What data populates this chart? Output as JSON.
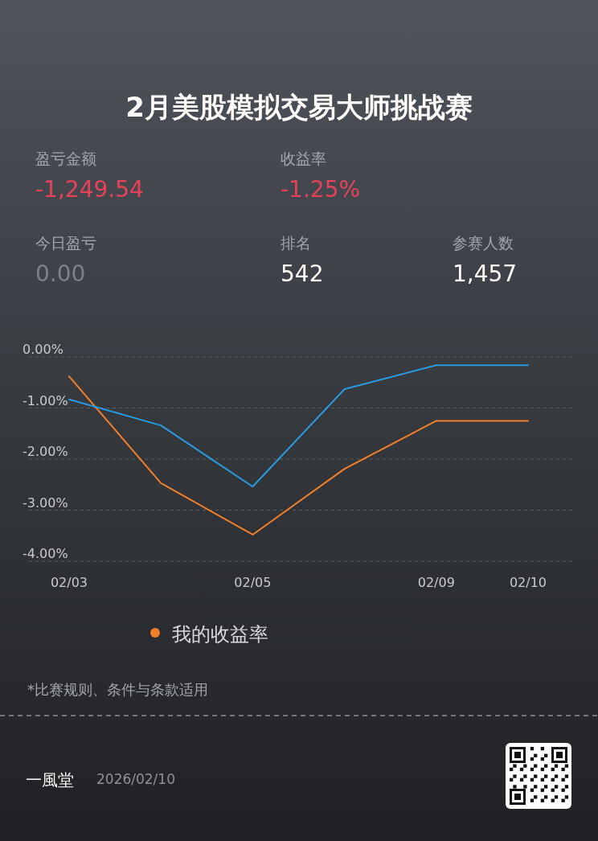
{
  "chart_data": {
    "type": "line",
    "title": "2月美股模拟交易大师挑战赛",
    "categories": [
      "02/03",
      null,
      "02/05",
      null,
      "02/09",
      "02/10"
    ],
    "series": [
      {
        "name": "我的收益率",
        "color": "#f0802a",
        "values": [
          -0.38,
          -2.47,
          -3.48,
          -2.19,
          -1.25,
          -1.25
        ]
      },
      {
        "color": "#2a9be0",
        "values": [
          -0.83,
          -1.34,
          -2.54,
          -0.63,
          -0.16,
          -0.16
        ]
      }
    ],
    "ylim": [
      -4,
      0
    ],
    "yticks": [
      {
        "value": 0,
        "label": "0.00%"
      },
      {
        "value": -1,
        "label": "-1.00%"
      },
      {
        "value": -2,
        "label": "-2.00%"
      },
      {
        "value": -3,
        "label": "-3.00%"
      },
      {
        "value": -4,
        "label": "-4.00%"
      }
    ],
    "grid": "y",
    "legend": "bottom",
    "marker": "none",
    "line_style": "solid",
    "annotations": [
      "盈亏金额",
      "-1,249.54",
      "收益率",
      "-1.25%",
      "今日盈亏",
      "0.00",
      "排名",
      "542",
      "参赛人数",
      "1,457",
      "*比赛规则、条件与条款适用",
      "一風堂",
      "2026/02/10"
    ]
  }
}
